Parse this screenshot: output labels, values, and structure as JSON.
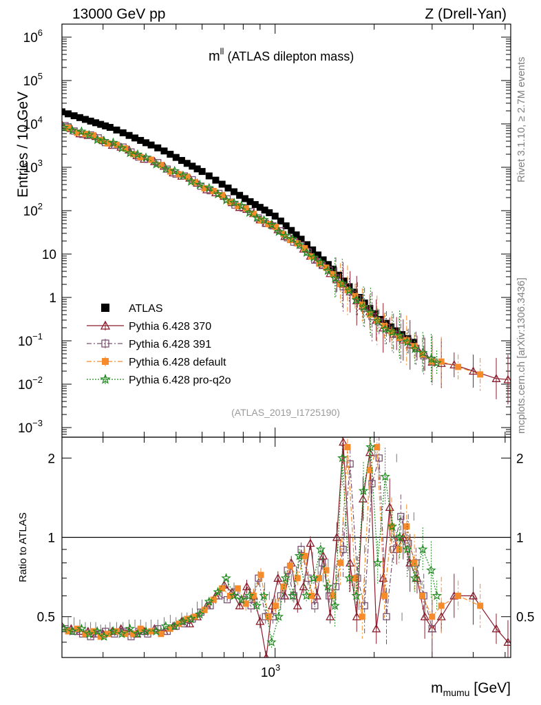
{
  "header": {
    "left": "13000 GeV pp",
    "right": "Z (Drell-Yan)"
  },
  "side_labels": {
    "rivet": "Rivet 3.1.10, ≥ 2.7M events",
    "mcplots": "mcplots.cern.ch [arXiv:1306.3436]"
  },
  "main_panel": {
    "title_symbol": "m",
    "title_sup": "ll",
    "title_rest": " (ATLAS dilepton mass)",
    "analysis_id": "(ATLAS_2019_I1725190)",
    "ylabel": "Entries / 10 GeV",
    "y_ticks": [
      {
        "mant": "10",
        "exp": "6",
        "value": 1000000
      },
      {
        "mant": "10",
        "exp": "5",
        "value": 100000
      },
      {
        "mant": "10",
        "exp": "4",
        "value": 10000
      },
      {
        "mant": "10",
        "exp": "3",
        "value": 1000
      },
      {
        "mant": "10",
        "exp": "2",
        "value": 100
      },
      {
        "mant": "10",
        "exp": "",
        "value": 10
      },
      {
        "mant": "1",
        "exp": "",
        "value": 1
      },
      {
        "mant": "10",
        "exp": "−1",
        "value": 0.1
      },
      {
        "mant": "10",
        "exp": "−2",
        "value": 0.01
      },
      {
        "mant": "10",
        "exp": "−3",
        "value": 0.001
      }
    ]
  },
  "ratio_panel": {
    "ylabel": "Ratio to ATLAS",
    "y_ticks": [
      {
        "label": "2",
        "value": 2
      },
      {
        "label": "1",
        "value": 1
      },
      {
        "label": "0.5",
        "value": 0.5
      }
    ]
  },
  "x_axis": {
    "label_main": "m",
    "label_sub": "mumu",
    "label_unit": " [GeV]",
    "tick_mant": "10",
    "tick_exp": "3"
  },
  "legend": [
    {
      "label": "ATLAS",
      "color": "#000000",
      "marker": "filled-square",
      "line": "none"
    },
    {
      "label": "Pythia 6.428 370",
      "color": "#8b1a2b",
      "marker": "open-triangle",
      "line": "solid"
    },
    {
      "label": "Pythia 6.428 391",
      "color": "#7a5070",
      "marker": "open-square",
      "line": "dashdot"
    },
    {
      "label": "Pythia 6.428 default",
      "color": "#f58b2a",
      "marker": "filled-square",
      "line": "dashdot"
    },
    {
      "label": "Pythia 6.428 pro-q2o",
      "color": "#1e8a1e",
      "marker": "open-star",
      "line": "dotted"
    }
  ],
  "chart_data": {
    "type": "scatter",
    "title": "m^ll (ATLAS dilepton mass)",
    "xlabel": "m_mumu [GeV]",
    "ylabel": "Entries / 10 GeV",
    "xscale": "log",
    "yscale": "log",
    "xlim": [
      225,
      5200
    ],
    "ylim": [
      0.0006,
      2000000
    ],
    "ratio_ylim": [
      0.35,
      2.4
    ],
    "grid": false,
    "legend_position": "bottom-left",
    "data_model": {
      "data_anchors": [
        [
          230,
          18000
        ],
        [
          320,
          8000
        ],
        [
          450,
          2600
        ],
        [
          600,
          800
        ],
        [
          800,
          200
        ],
        [
          1000,
          75
        ],
        [
          1200,
          22
        ],
        [
          1500,
          4.5
        ],
        [
          1800,
          1
        ],
        [
          2100,
          0.3
        ],
        [
          2500,
          0.12
        ],
        [
          3000,
          0.05
        ]
      ],
      "mc_anchors": [
        [
          230,
          8500
        ],
        [
          320,
          3500
        ],
        [
          450,
          1100
        ],
        [
          600,
          380
        ],
        [
          800,
          115
        ],
        [
          1000,
          40
        ],
        [
          1200,
          15
        ],
        [
          1500,
          3.3
        ],
        [
          1800,
          0.8
        ],
        [
          2100,
          0.23
        ],
        [
          2500,
          0.1
        ],
        [
          3000,
          0.035
        ],
        [
          4000,
          0.02
        ],
        [
          5000,
          0.013
        ]
      ]
    },
    "series": [
      {
        "name": "ATLAS",
        "x": [
          225,
          235,
          245,
          255,
          265,
          275,
          285,
          295,
          305,
          315,
          330,
          345,
          360,
          375,
          390,
          405,
          420,
          440,
          460,
          480,
          500,
          520,
          540,
          560,
          580,
          600,
          630,
          660,
          690,
          720,
          750,
          780,
          810,
          840,
          870,
          900,
          930,
          960,
          1000,
          1040,
          1080,
          1120,
          1160,
          1200,
          1250,
          1300,
          1350,
          1400,
          1450,
          1500,
          1560,
          1620,
          1680,
          1740,
          1800,
          1870,
          1940,
          2010,
          2090,
          2170,
          2250,
          2340,
          2430,
          2530,
          2640
        ],
        "ratio_to_mc_center": [
          0.5,
          0.48,
          0.48,
          0.47,
          0.46,
          0.46,
          0.46,
          0.45,
          0.45,
          0.46,
          0.46,
          0.46,
          0.47,
          0.47,
          0.47,
          0.46,
          0.47,
          0.47,
          0.48,
          0.49,
          0.48,
          0.5,
          0.5,
          0.52,
          0.55,
          0.56,
          0.56,
          0.58,
          0.6,
          0.65,
          0.65,
          0.63,
          0.6,
          0.62,
          0.65,
          0.7,
          0.65,
          0.6,
          0.58,
          0.55,
          0.65,
          0.7,
          0.75,
          0.8,
          0.82,
          0.85,
          0.75,
          0.7,
          0.8,
          0.65,
          0.7,
          0.9,
          0.7,
          0.65,
          0.55,
          0.9,
          1.5,
          2.1,
          0.7,
          0.6,
          1.0,
          2.0,
          0.5,
          0.8,
          1.2
        ]
      },
      {
        "name": "Pythia 6.428 370",
        "x": [
          225,
          240,
          255,
          270,
          285,
          300,
          320,
          340,
          360,
          380,
          400,
          430,
          460,
          490,
          520,
          550,
          580,
          620,
          660,
          700,
          740,
          780,
          820,
          860,
          900,
          940,
          980,
          1020,
          1070,
          1120,
          1170,
          1220,
          1280,
          1340,
          1400,
          1470,
          1540,
          1610,
          1690,
          1770,
          1850,
          1940,
          2030,
          2130,
          2230,
          2340,
          2450,
          2570,
          2700,
          2850,
          3000,
          3200,
          3500,
          4000,
          4700,
          5100
        ],
        "ratio": [
          0.46,
          0.45,
          0.44,
          0.44,
          0.43,
          0.43,
          0.44,
          0.45,
          0.44,
          0.43,
          0.44,
          0.45,
          0.44,
          0.46,
          0.48,
          0.47,
          0.5,
          0.55,
          0.6,
          0.66,
          0.62,
          0.55,
          0.65,
          0.6,
          0.48,
          0.35,
          0.55,
          0.7,
          0.6,
          0.8,
          0.55,
          0.65,
          0.95,
          0.6,
          0.85,
          0.5,
          1.0,
          2.3,
          0.8,
          0.5,
          1.4,
          2.1,
          0.45,
          0.7,
          1.3,
          0.9,
          1.0,
          0.8,
          0.7,
          0.5,
          0.45,
          0.5,
          0.6,
          0.6,
          0.45,
          0.4
        ]
      },
      {
        "name": "Pythia 6.428 391",
        "x": [
          230,
          245,
          260,
          275,
          290,
          305,
          325,
          345,
          365,
          385,
          410,
          440,
          470,
          500,
          530,
          560,
          595,
          635,
          675,
          715,
          755,
          800,
          845,
          890,
          935,
          985,
          1040,
          1090,
          1140,
          1200,
          1260,
          1320,
          1390,
          1460,
          1530,
          1610,
          1690,
          1780,
          1870,
          1970,
          2070,
          2180,
          2290,
          2410,
          2540,
          2680,
          2830,
          3000
        ],
        "ratio": [
          0.45,
          0.44,
          0.43,
          0.42,
          0.43,
          0.44,
          0.43,
          0.44,
          0.42,
          0.44,
          0.43,
          0.45,
          0.44,
          0.46,
          0.47,
          0.49,
          0.52,
          0.55,
          0.6,
          0.58,
          0.62,
          0.58,
          0.55,
          0.7,
          0.5,
          0.5,
          0.6,
          0.75,
          0.6,
          0.9,
          0.7,
          0.55,
          0.8,
          0.6,
          0.65,
          0.9,
          1.9,
          0.7,
          0.55,
          1.6,
          2.0,
          0.5,
          0.9,
          1.2,
          0.95,
          0.8,
          0.6,
          0.45
        ]
      },
      {
        "name": "Pythia 6.428 default",
        "x": [
          235,
          250,
          265,
          280,
          295,
          310,
          330,
          350,
          370,
          390,
          420,
          450,
          480,
          510,
          540,
          570,
          610,
          650,
          690,
          730,
          770,
          815,
          860,
          905,
          955,
          1005,
          1060,
          1110,
          1170,
          1230,
          1290,
          1360,
          1430,
          1500,
          1580,
          1660,
          1750,
          1840,
          1940,
          2040,
          2150,
          2260,
          2380,
          2510,
          2650,
          2800,
          3000,
          3200,
          3600,
          4200
        ],
        "ratio": [
          0.44,
          0.45,
          0.43,
          0.44,
          0.42,
          0.43,
          0.44,
          0.43,
          0.43,
          0.45,
          0.44,
          0.43,
          0.45,
          0.47,
          0.49,
          0.5,
          0.53,
          0.58,
          0.64,
          0.6,
          0.64,
          0.56,
          0.6,
          0.72,
          0.5,
          0.55,
          0.65,
          0.78,
          0.7,
          0.85,
          0.6,
          0.7,
          0.75,
          0.6,
          0.8,
          2.2,
          0.7,
          0.5,
          1.8,
          2.2,
          0.6,
          1.1,
          0.9,
          1.1,
          0.8,
          0.6,
          0.5,
          0.55,
          0.6,
          0.55
        ]
      },
      {
        "name": "Pythia 6.428 pro-q2o",
        "x": [
          228,
          242,
          258,
          272,
          288,
          302,
          322,
          342,
          362,
          382,
          405,
          435,
          465,
          495,
          525,
          555,
          590,
          630,
          670,
          710,
          750,
          790,
          835,
          880,
          925,
          975,
          1025,
          1075,
          1130,
          1185,
          1245,
          1310,
          1375,
          1445,
          1520,
          1600,
          1680,
          1765,
          1855,
          1950,
          2050,
          2160,
          2270,
          2390,
          2520,
          2660,
          2810,
          2980,
          3100
        ],
        "ratio": [
          0.45,
          0.44,
          0.45,
          0.43,
          0.44,
          0.42,
          0.44,
          0.43,
          0.45,
          0.43,
          0.44,
          0.44,
          0.46,
          0.46,
          0.48,
          0.49,
          0.51,
          0.57,
          0.62,
          0.7,
          0.6,
          0.58,
          0.6,
          0.55,
          0.6,
          0.4,
          0.5,
          0.7,
          0.6,
          0.85,
          0.6,
          0.7,
          0.9,
          0.65,
          0.55,
          2.0,
          0.7,
          0.6,
          1.5,
          2.2,
          0.8,
          1.7,
          1.1,
          1.0,
          0.9,
          0.7,
          0.9,
          0.75,
          0.6
        ]
      }
    ]
  }
}
